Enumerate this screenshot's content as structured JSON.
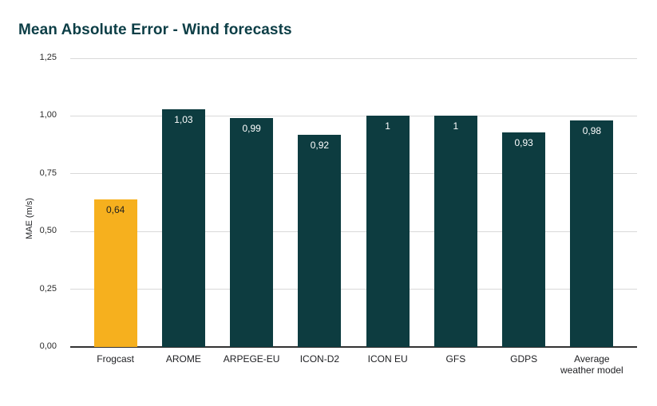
{
  "title": "Mean Absolute Error - Wind forecasts",
  "colors": {
    "background": "#ffffff",
    "title_text": "#0c3e46",
    "bar_default": "#0d3c40",
    "bar_highlight": "#f6b01e",
    "gridline": "#d9d9d9",
    "axis_baseline": "#333333",
    "tick_label": "#2b2b2b",
    "value_label_on_dark_bar": "#ffffff",
    "value_label_on_highlight_bar": "#1f1f1f"
  },
  "chart_data": {
    "type": "bar",
    "title": "Mean Absolute Error - Wind forecasts",
    "xlabel": "",
    "ylabel": "MAE (m/s)",
    "categories": [
      "Frogcast",
      "AROME",
      "ARPEGE-EU",
      "ICON-D2",
      "ICON EU",
      "GFS",
      "GDPS",
      "Average weather model"
    ],
    "values": [
      0.64,
      1.03,
      0.99,
      0.92,
      1,
      1,
      0.93,
      0.98
    ],
    "value_labels": [
      "0,64",
      "1,03",
      "0,99",
      "0,92",
      "1",
      "1",
      "0,93",
      "0,98"
    ],
    "highlighted_category": "Frogcast",
    "ylim": [
      0,
      1.25
    ],
    "ytick_values": [
      0,
      0.25,
      0.5,
      0.75,
      1,
      1.25
    ],
    "ytick_labels": [
      "0,00",
      "0,25",
      "0,50",
      "0,75",
      "1,00",
      "1,25"
    ],
    "grid": true,
    "legend": "none",
    "decimal_separator": ","
  }
}
